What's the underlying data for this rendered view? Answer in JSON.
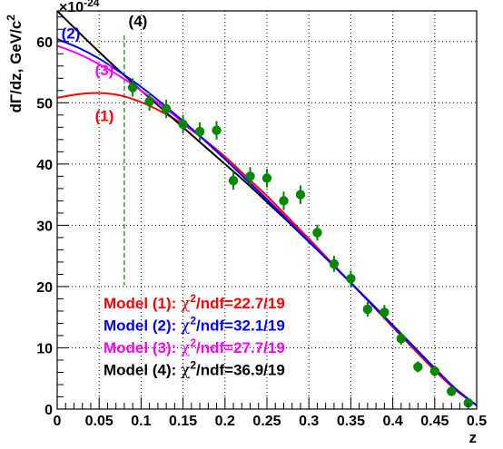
{
  "chart_data": {
    "type": "scatter",
    "x_axis": {
      "label": "z",
      "range": [
        0,
        0.5
      ],
      "ticks": [
        0,
        0.05,
        0.1,
        0.15,
        0.2,
        0.25,
        0.3,
        0.35,
        0.4,
        0.45,
        0.5
      ],
      "tick_labels": [
        "0",
        "0.05",
        "0.1",
        "0.15",
        "0.2",
        "0.25",
        "0.3",
        "0.35",
        "0.4",
        "0.45",
        "0.5"
      ]
    },
    "y_axis": {
      "label": "dΓ/dz, GeV/c",
      "label_superscript": "2",
      "exponent_prefix": "×10",
      "exponent": "-24",
      "range": [
        0,
        65
      ],
      "ticks": [
        0,
        10,
        20,
        30,
        40,
        50,
        60
      ],
      "tick_labels": [
        "0",
        "10",
        "20",
        "30",
        "40",
        "50",
        "60"
      ]
    },
    "grid": true,
    "cut_line": {
      "x": 0.08,
      "color": "#008800"
    },
    "points": {
      "color": "#008800",
      "x": [
        0.09,
        0.11,
        0.13,
        0.15,
        0.17,
        0.19,
        0.21,
        0.23,
        0.25,
        0.27,
        0.29,
        0.31,
        0.33,
        0.35,
        0.37,
        0.39,
        0.41,
        0.43,
        0.45,
        0.47,
        0.49
      ],
      "y": [
        52.5,
        50.2,
        49.0,
        46.5,
        45.3,
        45.5,
        37.3,
        38.0,
        37.7,
        34.0,
        35.0,
        28.8,
        23.7,
        21.3,
        16.3,
        15.8,
        11.5,
        6.9,
        6.2,
        2.9,
        1.0
      ],
      "err": [
        1.5,
        1.5,
        1.5,
        1.5,
        1.5,
        1.5,
        1.5,
        1.5,
        1.5,
        1.5,
        1.5,
        1.3,
        1.3,
        1.3,
        1.2,
        1.2,
        1.0,
        0.9,
        0.9,
        0.7,
        0.6
      ]
    },
    "models": [
      {
        "id": "1",
        "color": "#ff0000",
        "label": "(1)",
        "legend_prefix": "Model (1): ",
        "chi_symbol": "χ",
        "chi_sup": "2",
        "legend_value": "/ndf=22.7/19",
        "x": [
          0,
          0.025,
          0.05,
          0.075,
          0.1,
          0.125,
          0.15,
          0.175,
          0.2,
          0.225,
          0.25,
          0.275,
          0.3,
          0.325,
          0.35,
          0.375,
          0.4,
          0.425,
          0.45,
          0.475,
          0.5
        ],
        "y": [
          50.8,
          51.4,
          51.6,
          51.2,
          50.1,
          48.5,
          46.5,
          44.0,
          41.2,
          38.0,
          34.8,
          31.3,
          27.8,
          24.2,
          20.6,
          17.0,
          13.4,
          9.8,
          6.3,
          3.1,
          0.6
        ]
      },
      {
        "id": "2",
        "color": "#0000ff",
        "label": "(2)",
        "legend_prefix": "Model (2): ",
        "chi_symbol": "χ",
        "chi_sup": "2",
        "legend_value": "/ndf=32.1/19",
        "x": [
          0,
          0.025,
          0.05,
          0.075,
          0.1,
          0.125,
          0.15,
          0.175,
          0.2,
          0.225,
          0.25,
          0.275,
          0.3,
          0.325,
          0.35,
          0.375,
          0.4,
          0.425,
          0.45,
          0.475,
          0.5
        ],
        "y": [
          60.4,
          59.0,
          57.2,
          55.0,
          52.6,
          49.9,
          47.0,
          44.0,
          40.8,
          37.5,
          34.2,
          30.8,
          27.4,
          24.0,
          20.6,
          17.1,
          13.6,
          10.1,
          6.6,
          3.3,
          0.6
        ]
      },
      {
        "id": "3",
        "color": "#ff00ff",
        "label": "(3)",
        "legend_prefix": "Model (3): ",
        "chi_symbol": "χ",
        "chi_sup": "2",
        "legend_value": "/ndf=27.7/19",
        "x": [
          0,
          0.025,
          0.05,
          0.075,
          0.1,
          0.125,
          0.15,
          0.175,
          0.2,
          0.225,
          0.25,
          0.275,
          0.3,
          0.325,
          0.35,
          0.375,
          0.4,
          0.425,
          0.45,
          0.475,
          0.5
        ],
        "y": [
          59.3,
          58.0,
          56.3,
          54.3,
          52.0,
          49.5,
          46.8,
          43.9,
          40.8,
          37.6,
          34.3,
          30.9,
          27.5,
          24.0,
          20.6,
          17.1,
          13.6,
          10.1,
          6.6,
          3.3,
          0.6
        ]
      },
      {
        "id": "4",
        "color": "#000000",
        "label": "(4)",
        "legend_prefix": "Model (4): ",
        "chi_symbol": "χ",
        "chi_sup": "2",
        "legend_value": "/ndf=36.9/19",
        "x": [
          0,
          0.025,
          0.05,
          0.075,
          0.1,
          0.125,
          0.15,
          0.175,
          0.2,
          0.225,
          0.25,
          0.275,
          0.3,
          0.325,
          0.35,
          0.375,
          0.4,
          0.425,
          0.45,
          0.475,
          0.5
        ],
        "y": [
          65.0,
          61.6,
          58.3,
          55.1,
          52.0,
          49.0,
          46.0,
          43.0,
          40.0,
          37.0,
          33.8,
          30.6,
          27.3,
          24.0,
          20.6,
          17.2,
          13.7,
          10.2,
          6.7,
          3.3,
          0.6
        ]
      }
    ],
    "curve_labels": [
      {
        "text": "(4)",
        "color": "#000000",
        "x": 0.085,
        "y": 62.5
      },
      {
        "text": "(2)",
        "color": "#0000ff",
        "x": 0.005,
        "y": 60.5
      },
      {
        "text": "(3)",
        "color": "#ff00ff",
        "x": 0.045,
        "y": 54.5
      },
      {
        "text": "(1)",
        "color": "#ff0000",
        "x": 0.045,
        "y": 47.0
      }
    ],
    "legend_position": "bottom-left"
  }
}
